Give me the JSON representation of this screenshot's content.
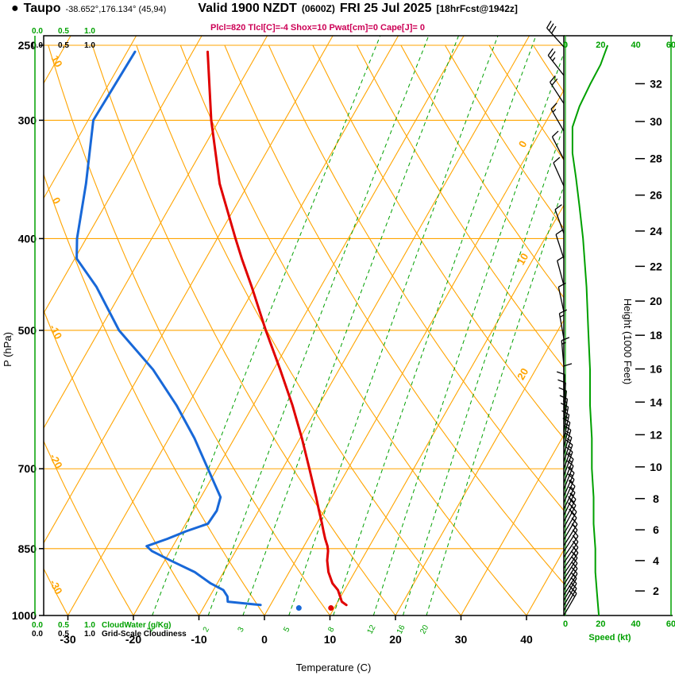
{
  "header": {
    "bullet": "●",
    "station": "Taupo",
    "coords": "-38.652°,176.134° (45,94)",
    "valid": "Valid 1900 NZDT",
    "valid_z": "(0600Z)",
    "date": "FRI 25 Jul 2025",
    "fcst": "[18hrFcst@1942z]",
    "params": "Plcl=820 Tlcl[C]=-4 Shox=10 Pwat[cm]=0 Cape[J]= 0"
  },
  "axes": {
    "pressure_label": "P (hPa)",
    "pressure_ticks": [
      250,
      300,
      400,
      500,
      700,
      850,
      1000
    ],
    "temperature_label": "Temperature (C)",
    "temperature_ticks": [
      -30,
      -20,
      -10,
      0,
      10,
      20,
      30,
      40
    ],
    "height_label": "Height (1000 Feet)",
    "height_ticks": [
      2,
      4,
      6,
      8,
      10,
      12,
      14,
      16,
      18,
      20,
      22,
      24,
      26,
      28,
      30,
      32
    ],
    "speed_label": "Speed (kt)",
    "speed_ticks": [
      0,
      20,
      40,
      60
    ],
    "cloudwater_label": "CloudWater (g/Kg)",
    "cloudiness_label": "Grid-Scale Cloudiness",
    "cloud_scale_ticks": [
      "0.0",
      "0.5",
      "1.0"
    ]
  },
  "chart_data": {
    "type": "line",
    "variant": "skew-t log-p sounding",
    "pressure_range_hpa": [
      1000,
      250
    ],
    "isotherms_c": {
      "start": -80,
      "end": 40,
      "step": 10
    },
    "isotherm_inline_labels": [
      0,
      10,
      20
    ],
    "dry_adiabats_c": {
      "start": -40,
      "end": 140,
      "step": 10
    },
    "dry_adiabat_inline_labels": [
      10,
      0,
      -10,
      -20,
      -30
    ],
    "mixing_ratio_lines_g_kg": [
      1,
      2,
      3,
      5,
      8,
      12,
      16,
      20
    ],
    "sounding": {
      "pressure_hpa": [
        975,
        967,
        955,
        940,
        925,
        900,
        875,
        855,
        845,
        830,
        815,
        800,
        775,
        750,
        700,
        650,
        600,
        550,
        500,
        450,
        420,
        400,
        350,
        300,
        254
      ],
      "temperature_c": [
        11.6,
        10.6,
        9.9,
        9.0,
        7.6,
        6.0,
        4.8,
        4.1,
        3.6,
        2.6,
        1.7,
        0.8,
        -0.8,
        -2.4,
        -5.9,
        -9.7,
        -14.0,
        -19.0,
        -24.6,
        -30.5,
        -34.5,
        -37.2,
        -44.4,
        -51.2,
        -57.7
      ],
      "dewpoint_c": [
        -1.5,
        -6.8,
        -7.3,
        -8.5,
        -11.0,
        -14.4,
        -19.1,
        -22.8,
        -24.0,
        -21.5,
        -19.3,
        -16.6,
        -16.4,
        -17.0,
        -21.4,
        -26.1,
        -31.7,
        -38.4,
        -47.0,
        -54.2,
        -59.7,
        -61.4,
        -64.8,
        -69.2,
        -68.8
      ]
    },
    "surface_markers": [
      {
        "pressure_hpa": 982,
        "value_c": 9.5,
        "series": "temperature"
      },
      {
        "pressure_hpa": 982,
        "value_c": 4.6,
        "series": "dewpoint"
      }
    ],
    "wind_speed_profile": {
      "pressure_hpa": [
        1000,
        950,
        900,
        850,
        800,
        750,
        700,
        650,
        600,
        550,
        500,
        450,
        400,
        370,
        345,
        325,
        305,
        290,
        275,
        262,
        250
      ],
      "speed_kt": [
        19,
        18,
        17,
        17,
        16,
        16,
        15,
        15,
        14,
        14,
        13,
        12,
        10,
        8,
        6,
        4,
        4,
        8,
        14,
        20,
        24
      ]
    },
    "wind_barbs": [
      [
        1000,
        18,
        30
      ],
      [
        988,
        18,
        30
      ],
      [
        976,
        17,
        30
      ],
      [
        964,
        17,
        30
      ],
      [
        952,
        17,
        32
      ],
      [
        940,
        16,
        32
      ],
      [
        928,
        16,
        32
      ],
      [
        916,
        15,
        32
      ],
      [
        904,
        15,
        34
      ],
      [
        892,
        15,
        34
      ],
      [
        880,
        15,
        34
      ],
      [
        868,
        16,
        34
      ],
      [
        856,
        16,
        32
      ],
      [
        844,
        17,
        32
      ],
      [
        832,
        17,
        30
      ],
      [
        820,
        18,
        30
      ],
      [
        808,
        18,
        28
      ],
      [
        796,
        18,
        28
      ],
      [
        784,
        17,
        26
      ],
      [
        772,
        17,
        26
      ],
      [
        760,
        16,
        24
      ],
      [
        748,
        16,
        24
      ],
      [
        736,
        15,
        22
      ],
      [
        724,
        15,
        22
      ],
      [
        712,
        15,
        20
      ],
      [
        700,
        15,
        20
      ],
      [
        688,
        14,
        18
      ],
      [
        676,
        14,
        16
      ],
      [
        664,
        14,
        14
      ],
      [
        652,
        13,
        12
      ],
      [
        640,
        13,
        10
      ],
      [
        628,
        13,
        8
      ],
      [
        616,
        12,
        6
      ],
      [
        604,
        12,
        4
      ],
      [
        592,
        12,
        2
      ],
      [
        580,
        12,
        0
      ],
      [
        545,
        13,
        355
      ],
      [
        510,
        13,
        350
      ],
      [
        478,
        12,
        348
      ],
      [
        448,
        12,
        345
      ],
      [
        420,
        11,
        342
      ],
      [
        395,
        10,
        340
      ],
      [
        352,
        10,
        336
      ],
      [
        330,
        10,
        333
      ],
      [
        308,
        15,
        330
      ],
      [
        288,
        20,
        327
      ],
      [
        269,
        25,
        322
      ],
      [
        251,
        30,
        318
      ]
    ],
    "cloudwater_profile_g_kg": {
      "constant": 0
    },
    "grid_scale_cloudiness": {
      "constant": 0
    }
  },
  "colors": {
    "grid": "#ffa400",
    "isopleth_green": "#00a000",
    "temperature": "#e00000",
    "dewpoint": "#1868d8",
    "params_text": "#cc0055",
    "frame": "#000000"
  }
}
